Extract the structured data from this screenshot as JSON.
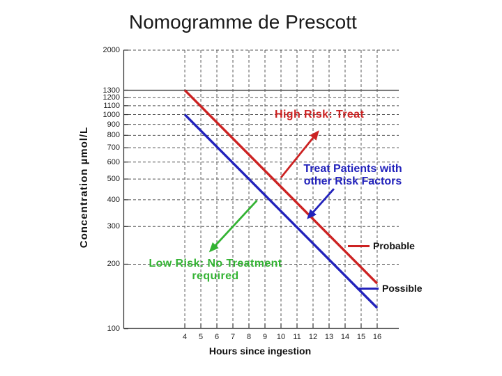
{
  "chart_data": {
    "type": "line",
    "title": "Nomogramme de Prescott",
    "xlabel": "Hours since ingestion",
    "ylabel": "Concentration  µmol/L",
    "x_scale": "linear",
    "y_scale": "log",
    "xlim": [
      0.17,
      17.35
    ],
    "ylim": [
      100,
      2000
    ],
    "x_ticks": [
      4,
      5,
      6,
      7,
      8,
      9,
      10,
      11,
      12,
      13,
      14,
      15,
      16
    ],
    "y_ticks": [
      100,
      200,
      300,
      400,
      500,
      600,
      700,
      800,
      900,
      1000,
      1100,
      1200,
      1300,
      2000
    ],
    "grid": "dashed",
    "grid_color": "#555555",
    "axis_color": "#333333",
    "solid_gridline_y": 1300,
    "series": [
      {
        "name": "Probable",
        "color": "#cc2222",
        "points": [
          [
            4,
            1300
          ],
          [
            16,
            162.5
          ]
        ]
      },
      {
        "name": "Possible",
        "color": "#2222bb",
        "points": [
          [
            4,
            1000
          ],
          [
            16,
            125
          ]
        ]
      }
    ],
    "annotations": [
      {
        "id": "high-risk",
        "color": "#cc2222",
        "lines": [
          "High Risk: Treat"
        ]
      },
      {
        "id": "treat-patients",
        "color": "#2222bb",
        "lines": [
          "Treat Patients with",
          "other Risk Factors"
        ]
      },
      {
        "id": "low-risk",
        "color": "#33b333",
        "lines": [
          "Low Risk: No Treatment",
          "required"
        ]
      }
    ],
    "arrows": [
      {
        "name": "high-risk-arrow",
        "color": "#cc2222",
        "from": [
          10.0,
          508
        ],
        "to": [
          12.3,
          830
        ]
      },
      {
        "name": "risk-factors-arrow",
        "color": "#2222bb",
        "from": [
          13.3,
          450
        ],
        "to": [
          11.7,
          330
        ]
      },
      {
        "name": "low-risk-arrow",
        "color": "#33b333",
        "from": [
          8.5,
          397
        ],
        "to": [
          5.6,
          231
        ]
      }
    ],
    "legend": [
      {
        "label": "Probable",
        "color": "#cc2222"
      },
      {
        "label": "Possible",
        "color": "#2222bb"
      }
    ]
  }
}
